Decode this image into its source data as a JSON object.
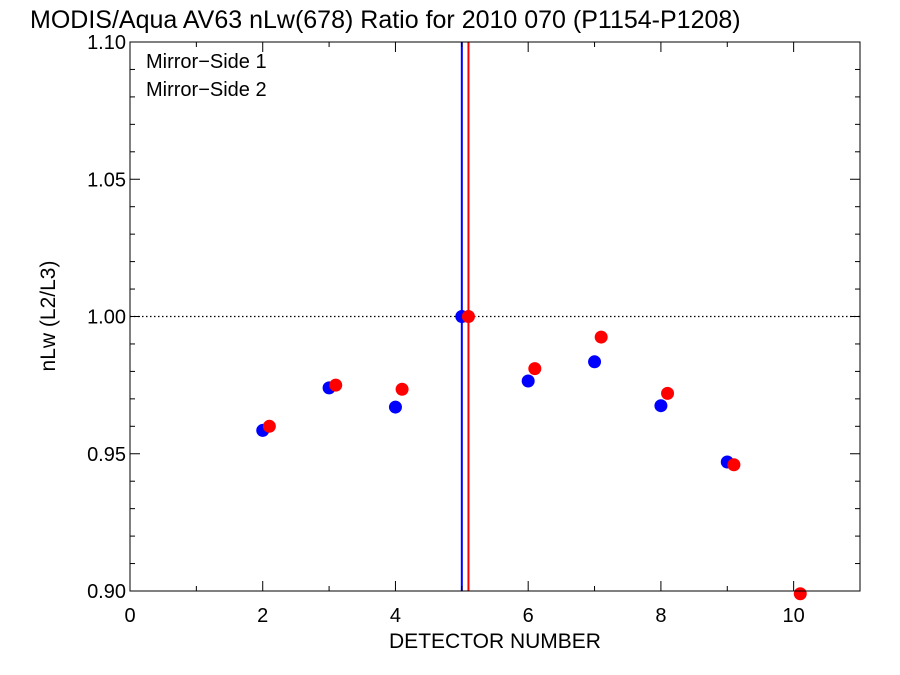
{
  "chart_data": {
    "type": "scatter",
    "title": "MODIS/Aqua AV63 nLw(678) Ratio for 2010 070 (P1154-P1208)",
    "xlabel": "DETECTOR NUMBER",
    "ylabel": "nLw (L2/L3)",
    "xlim": [
      0,
      11
    ],
    "ylim": [
      0.9,
      1.1
    ],
    "x_ticks": [
      0,
      2,
      4,
      6,
      8,
      10
    ],
    "x_tick_labels": [
      "0",
      "2",
      "4",
      "6",
      "8",
      "10"
    ],
    "y_ticks": [
      0.9,
      0.95,
      1.0,
      1.05,
      1.1
    ],
    "y_tick_labels": [
      "0.90",
      "0.95",
      "1.00",
      "1.05",
      "1.10"
    ],
    "reference_line_y": 1.0,
    "legend_position": "top-left",
    "series": [
      {
        "name": "Mirror−Side 1",
        "color": "#0000ff",
        "x": [
          2,
          3,
          4,
          5,
          6,
          7,
          8,
          9
        ],
        "y": [
          0.9585,
          0.974,
          0.967,
          1.0,
          0.9765,
          0.9835,
          0.9675,
          0.947
        ],
        "vline_x": 5
      },
      {
        "name": "Mirror−Side 2",
        "color": "#ff0000",
        "x": [
          2.1,
          3.1,
          4.1,
          5.1,
          6.1,
          7.1,
          8.1,
          9.1,
          10.1
        ],
        "y": [
          0.96,
          0.975,
          0.9735,
          1.0,
          0.981,
          0.9925,
          0.972,
          0.946,
          0.899
        ],
        "vline_x": 5.1
      }
    ]
  }
}
